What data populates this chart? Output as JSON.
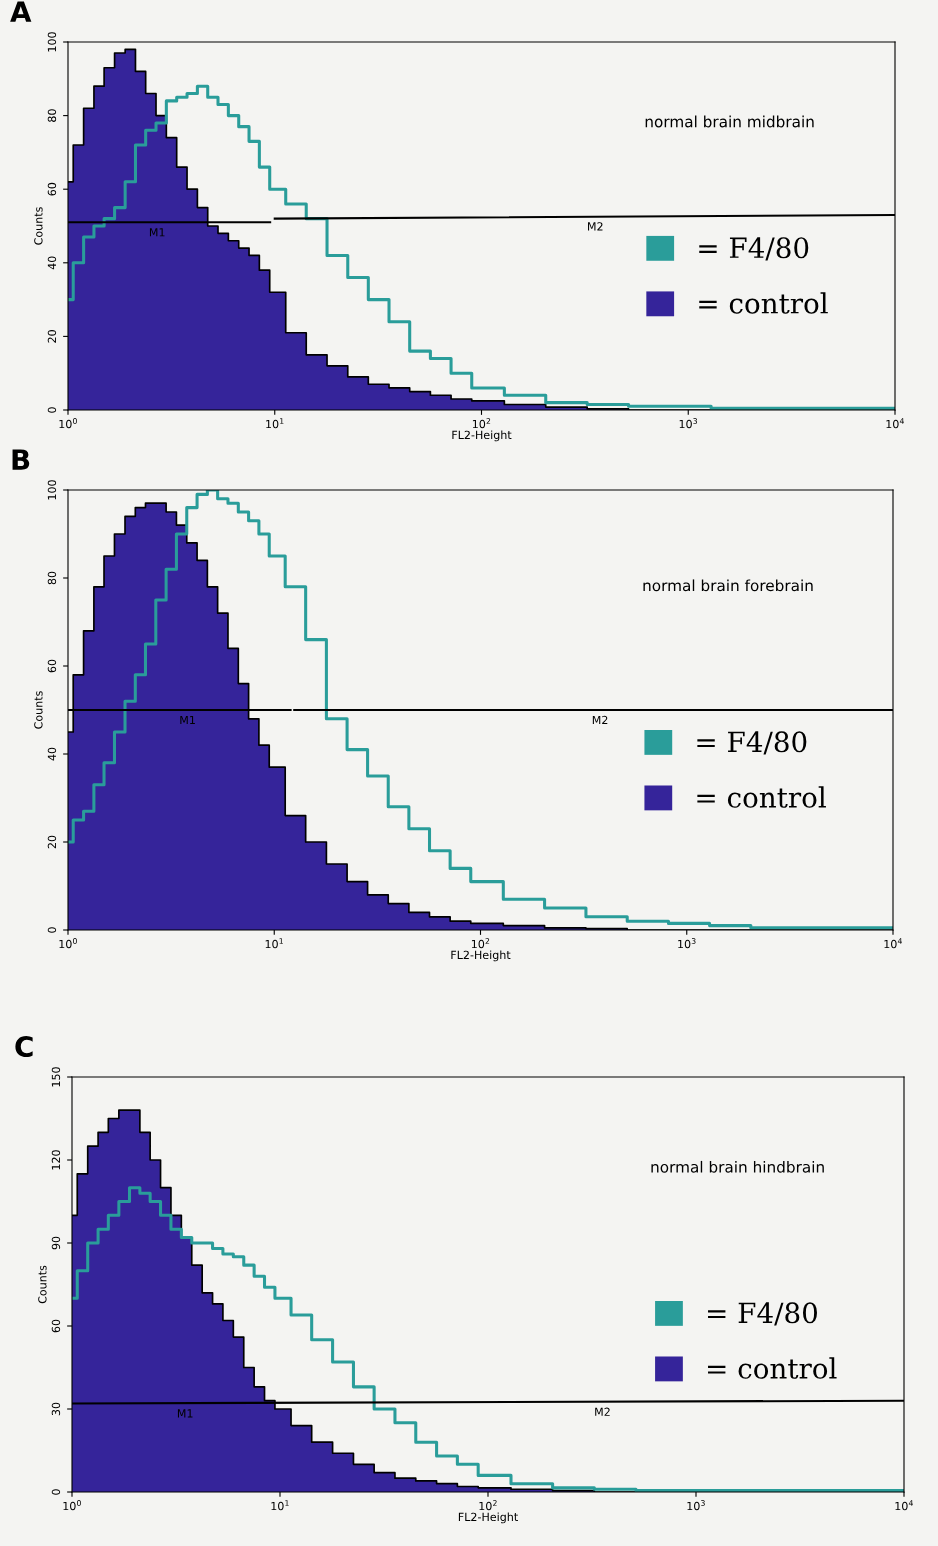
{
  "chart_data": [
    {
      "type": "step",
      "title": "A",
      "xlabel": "FL2-Height",
      "ylabel": "Counts",
      "log": "x",
      "xlim": [
        1,
        10000
      ],
      "xticks": [
        {
          "value": 1,
          "label": "10$^{0}$"
        },
        {
          "value": 10,
          "label": "10$^{1}$"
        },
        {
          "value": 100,
          "label": "10$^{2}$"
        },
        {
          "value": 1000,
          "label": "10$^{3}$"
        },
        {
          "value": 10000,
          "label": "10$^{4}$"
        }
      ],
      "ylim": [
        0,
        100
      ],
      "yticks": [
        0,
        20,
        40,
        60,
        80,
        100
      ],
      "grid": false,
      "legend": "right",
      "x": [
        1,
        1.12,
        1.26,
        1.41,
        1.58,
        1.78,
        2,
        2.24,
        2.51,
        2.82,
        3.16,
        3.55,
        3.98,
        4.47,
        5.01,
        5.62,
        6.31,
        7.08,
        7.94,
        8.91,
        10,
        12.6,
        15.8,
        20,
        25.1,
        31.6,
        39.8,
        50.1,
        63.1,
        79.4,
        100,
        158,
        251,
        398,
        631,
        1000,
        1580,
        2510,
        3980,
        6310,
        10000
      ],
      "series": [
        {
          "name": "= control",
          "type": "area",
          "color": "#35249a",
          "values": [
            62,
            72,
            82,
            88,
            93,
            97,
            98,
            92,
            86,
            80,
            74,
            66,
            60,
            55,
            50,
            48,
            46,
            44,
            42,
            38,
            32,
            21,
            15,
            12,
            9,
            7,
            6,
            5,
            4,
            3,
            2.5,
            1.5,
            0.8,
            0.3,
            0,
            0,
            0,
            0,
            0,
            0,
            0
          ]
        },
        {
          "name": "= F4/80",
          "color": "#2a9d9a",
          "values": [
            30,
            40,
            47,
            50,
            52,
            55,
            62,
            72,
            76,
            78,
            84,
            85,
            86,
            88,
            85,
            83,
            80,
            77,
            73,
            66,
            60,
            56,
            52,
            42,
            36,
            30,
            24,
            16,
            14,
            10,
            6,
            4,
            2,
            1.5,
            1,
            1,
            0.5,
            0.5,
            0.5,
            0.5,
            0.5
          ]
        },
        {
          "type": "line",
          "color": "#000000",
          "x": [
            1,
            9.5
          ],
          "values": [
            51,
            51
          ]
        },
        {
          "type": "line",
          "color": "#000000",
          "x": [
            10,
            10000
          ],
          "values": [
            52,
            53
          ]
        }
      ],
      "annotations": [
        "normal brain midbrain",
        {
          "text": "M1",
          "x": 2.7,
          "y": 51
        },
        {
          "text": "M2",
          "x": 355,
          "y": 52.6
        }
      ]
    },
    {
      "type": "step",
      "title": "B",
      "xlabel": "FL2-Height",
      "ylabel": "Counts",
      "log": "x",
      "xlim": [
        1,
        10000
      ],
      "xticks": [
        {
          "value": 1,
          "label": "10$^{0}$"
        },
        {
          "value": 10,
          "label": "10$^{1}$"
        },
        {
          "value": 100,
          "label": "10$^{2}$"
        },
        {
          "value": 1000,
          "label": "10$^{3}$"
        },
        {
          "value": 10000,
          "label": "10$^{4}$"
        }
      ],
      "ylim": [
        0,
        100
      ],
      "yticks": [
        0,
        20,
        40,
        60,
        80,
        100
      ],
      "grid": false,
      "legend": "right",
      "x": [
        1,
        1.12,
        1.26,
        1.41,
        1.58,
        1.78,
        2,
        2.24,
        2.51,
        2.82,
        3.16,
        3.55,
        3.98,
        4.47,
        5.01,
        5.62,
        6.31,
        7.08,
        7.94,
        8.91,
        10,
        12.6,
        15.8,
        20,
        25.1,
        31.6,
        39.8,
        50.1,
        63.1,
        79.4,
        100,
        158,
        251,
        398,
        631,
        1000,
        1580,
        2510,
        3980,
        6310,
        10000
      ],
      "series": [
        {
          "name": "= control",
          "type": "area",
          "color": "#35249a",
          "values": [
            45,
            58,
            68,
            78,
            85,
            90,
            94,
            96,
            97,
            97,
            95,
            92,
            88,
            84,
            78,
            72,
            64,
            56,
            48,
            42,
            37,
            26,
            20,
            15,
            11,
            8,
            6,
            4,
            3,
            2,
            1.5,
            1,
            0.5,
            0.3,
            0,
            0,
            0,
            0,
            0,
            0,
            0
          ]
        },
        {
          "name": "= F4/80",
          "color": "#2a9d9a",
          "values": [
            20,
            25,
            27,
            33,
            38,
            45,
            52,
            58,
            65,
            75,
            82,
            90,
            96,
            99,
            100,
            98,
            97,
            95,
            93,
            90,
            85,
            78,
            66,
            48,
            41,
            35,
            28,
            23,
            18,
            14,
            11,
            7,
            5,
            3,
            2,
            1.5,
            1,
            0.5,
            0.5,
            0.5,
            0.5
          ]
        },
        {
          "type": "line",
          "color": "#000000",
          "x": [
            1,
            12
          ],
          "values": [
            50,
            50
          ]
        },
        {
          "type": "line",
          "color": "#000000",
          "x": [
            12.5,
            10000
          ],
          "values": [
            50,
            50
          ]
        }
      ],
      "annotations": [
        "normal brain forebrain",
        {
          "text": "M1",
          "x": 3.8,
          "y": 50
        },
        {
          "text": "M2",
          "x": 380,
          "y": 50
        }
      ]
    },
    {
      "type": "step",
      "title": "C",
      "xlabel": "FL2-Height",
      "ylabel": "Counts",
      "log": "x",
      "xlim": [
        1,
        10000
      ],
      "xticks": [
        {
          "value": 1,
          "label": "10$^{0}$"
        },
        {
          "value": 10,
          "label": "10$^{1}$"
        },
        {
          "value": 100,
          "label": "10$^{2}$"
        },
        {
          "value": 1000,
          "label": "10$^{3}$"
        },
        {
          "value": 10000,
          "label": "10$^{4}$"
        }
      ],
      "ylim": [
        0,
        150
      ],
      "yticks": [
        0,
        30,
        60,
        90,
        120,
        150
      ],
      "grid": false,
      "legend": "right",
      "x": [
        1,
        1.12,
        1.26,
        1.41,
        1.58,
        1.78,
        2,
        2.24,
        2.51,
        2.82,
        3.16,
        3.55,
        3.98,
        4.47,
        5.01,
        5.62,
        6.31,
        7.08,
        7.94,
        8.91,
        10,
        12.6,
        15.8,
        20,
        25.1,
        31.6,
        39.8,
        50.1,
        63.1,
        79.4,
        100,
        158,
        251,
        398,
        631,
        1000,
        1580,
        2510,
        3980,
        6310,
        10000
      ],
      "series": [
        {
          "name": "= control",
          "type": "area",
          "color": "#35249a",
          "values": [
            100,
            115,
            125,
            130,
            135,
            138,
            138,
            130,
            120,
            110,
            100,
            92,
            82,
            72,
            68,
            62,
            56,
            45,
            38,
            33,
            30,
            24,
            18,
            14,
            10,
            7,
            5,
            4,
            3,
            2,
            1.5,
            1,
            0.5,
            0,
            0,
            0,
            0,
            0,
            0,
            0,
            0
          ]
        },
        {
          "name": "= F4/80",
          "color": "#2a9d9a",
          "values": [
            70,
            80,
            90,
            95,
            100,
            105,
            110,
            108,
            105,
            100,
            95,
            92,
            90,
            90,
            88,
            86,
            85,
            82,
            78,
            74,
            70,
            64,
            55,
            47,
            38,
            30,
            25,
            18,
            13,
            10,
            6,
            3,
            1.5,
            1,
            0.5,
            0.5,
            0.5,
            0.5,
            0.5,
            0.5,
            0.5
          ]
        },
        {
          "type": "line",
          "color": "#000000",
          "x": [
            1,
            10000
          ],
          "values": [
            32,
            33
          ]
        }
      ],
      "annotations": [
        "normal brain hindbrain",
        {
          "text": "M1",
          "x": 3.5,
          "y": 32
        },
        {
          "text": "M2",
          "x": 355,
          "y": 32.6
        }
      ]
    }
  ]
}
